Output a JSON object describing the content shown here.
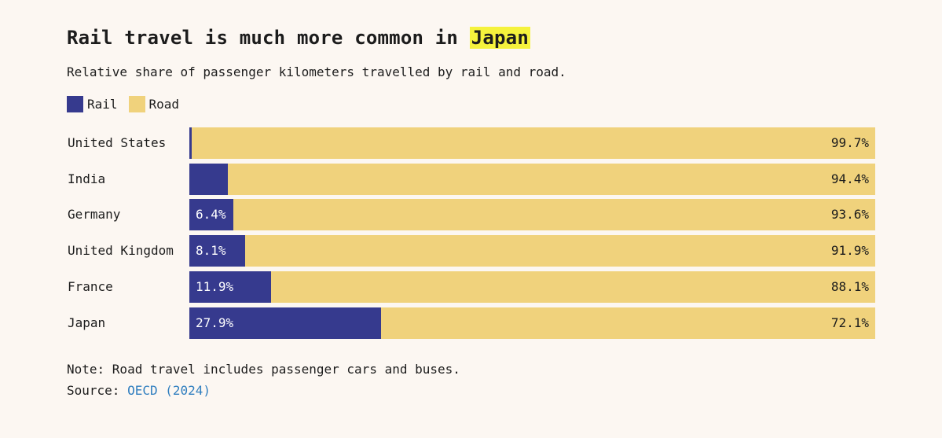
{
  "title": {
    "before": "Rail travel is much more common in ",
    "highlight": "Japan"
  },
  "subtitle": "Relative share of passenger kilometers travelled by rail and road.",
  "legend": {
    "rail_label": "Rail",
    "road_label": "Road"
  },
  "colors": {
    "rail": "#363a8e",
    "road": "#f0d27c",
    "highlight": "#f5f23c",
    "link": "#2f7ebf"
  },
  "note": "Note: Road travel includes passenger cars and buses.",
  "source": {
    "prefix": "Source: ",
    "link_text": "OECD (2024)"
  },
  "chart_data": {
    "type": "bar",
    "orientation": "horizontal-stacked-100",
    "categories": [
      "United States",
      "India",
      "Germany",
      "United Kingdom",
      "France",
      "Japan"
    ],
    "series": [
      {
        "name": "Rail",
        "values": [
          0.3,
          5.6,
          6.4,
          8.1,
          11.9,
          27.9
        ],
        "labels": [
          "",
          "",
          "6.4%",
          "8.1%",
          "11.9%",
          "27.9%"
        ]
      },
      {
        "name": "Road",
        "values": [
          99.7,
          94.4,
          93.6,
          91.9,
          88.1,
          72.1
        ],
        "labels": [
          "99.7%",
          "94.4%",
          "93.6%",
          "91.9%",
          "88.1%",
          "72.1%"
        ]
      }
    ],
    "xlim": [
      0,
      100
    ],
    "grid": false,
    "legend_position": "top-left"
  }
}
